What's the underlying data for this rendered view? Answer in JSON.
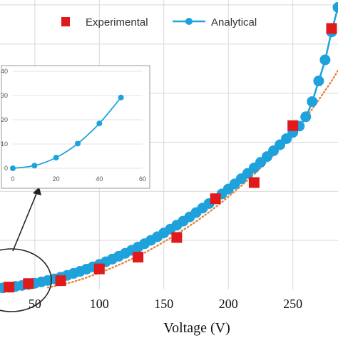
{
  "colors": {
    "experimental": "#e0191c",
    "analytical": "#1fa2dc",
    "trend": "#e8843a",
    "grid": "#d9d9d9",
    "inset_grid": "#e3e3e3"
  },
  "chart_data": [
    {
      "type": "scatter",
      "title": "",
      "xlabel": "Voltage (V)",
      "ylabel": "",
      "xlim": [
        23,
        285
      ],
      "ylim": [
        0,
        59
      ],
      "grid": true,
      "legend_position": "top",
      "x_ticks": [
        "50",
        "100",
        "150",
        "200",
        "250"
      ],
      "series": [
        {
          "name": "Experimental",
          "marker": "square",
          "x": [
            30,
            45,
            70,
            100,
            130,
            160,
            190,
            220,
            250,
            280
          ],
          "y": [
            0.5,
            1.2,
            1.8,
            4.2,
            6.6,
            10.6,
            18.5,
            21.8,
            33.4,
            53.2
          ]
        },
        {
          "name": "Analytical",
          "marker": "circle",
          "line": "solid",
          "x": [
            25,
            30,
            35,
            40,
            45,
            50,
            55,
            60,
            65,
            70,
            75,
            80,
            85,
            90,
            95,
            100,
            105,
            110,
            115,
            120,
            125,
            130,
            135,
            140,
            145,
            150,
            155,
            160,
            165,
            170,
            175,
            180,
            185,
            190,
            195,
            200,
            205,
            210,
            215,
            220,
            225,
            230,
            235,
            240,
            245,
            250,
            255,
            260,
            265,
            270,
            275,
            280,
            285
          ],
          "y": [
            0.32,
            0.46,
            0.63,
            0.82,
            1.04,
            1.28,
            1.55,
            1.84,
            2.16,
            2.51,
            2.88,
            3.28,
            3.7,
            4.15,
            4.62,
            5.12,
            5.65,
            6.2,
            6.77,
            7.37,
            8.0,
            8.65,
            9.33,
            10.03,
            10.76,
            11.52,
            12.3,
            13.1,
            13.94,
            14.79,
            15.68,
            16.59,
            17.52,
            18.48,
            19.47,
            20.48,
            21.52,
            22.58,
            23.67,
            24.78,
            25.92,
            27.09,
            28.28,
            29.5,
            30.74,
            32.01,
            33.3,
            35.2,
            38.3,
            42.5,
            46.8,
            52.5,
            57.5
          ]
        },
        {
          "name": "",
          "line": "dotted",
          "x": [
            60,
            80,
            100,
            120,
            140,
            160,
            180,
            200,
            220,
            240,
            260,
            280,
            290
          ],
          "y": [
            0.4,
            1.6,
            3.4,
            5.6,
            8.2,
            11.3,
            14.8,
            18.9,
            23.5,
            28.8,
            35.0,
            42.5,
            47
          ]
        }
      ]
    },
    {
      "type": "line",
      "title": "",
      "xlabel": "",
      "ylabel": "",
      "xlim": [
        0,
        60
      ],
      "ylim": [
        0,
        40
      ],
      "grid": true,
      "x_ticks": [
        "0",
        "20",
        "40",
        "60"
      ],
      "y_ticks": [
        "0",
        "10",
        "20",
        "30",
        "40"
      ],
      "series": [
        {
          "name": "",
          "x": [
            0,
            10,
            20,
            30,
            40,
            50
          ],
          "y": [
            0,
            1.1,
            4.4,
            10.2,
            18.5,
            29.2
          ]
        }
      ]
    }
  ],
  "legend": {
    "experimental_label": "Experimental",
    "analytical_label": "Analytical"
  }
}
